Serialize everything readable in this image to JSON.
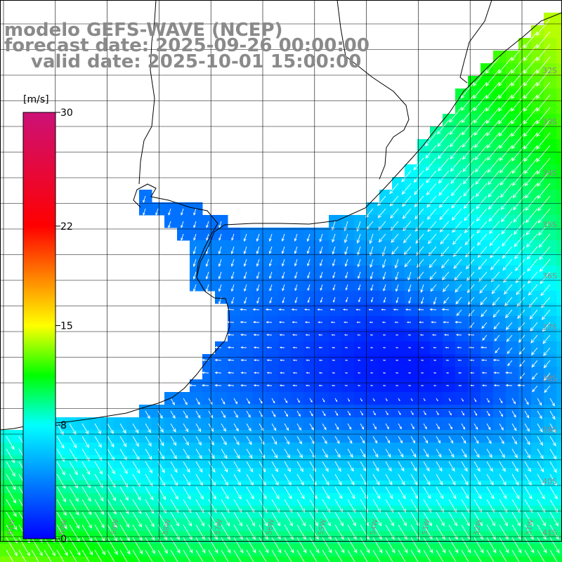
{
  "title": {
    "line1": "modelo GEFS-WAVE (NCEP)",
    "line2": "forecast date: 2025-09-26 00:00:00",
    "line3": "valid date: 2025-10-01 15:00:00"
  },
  "colorbar": {
    "unit": "[m/s]",
    "ticks": [
      {
        "label": "30",
        "value": 30
      },
      {
        "label": "22",
        "value": 22
      },
      {
        "label": "15",
        "value": 15
      },
      {
        "label": "8",
        "value": 8
      },
      {
        "label": "0",
        "value": 0
      }
    ],
    "stops": [
      {
        "value": 0,
        "color": "#0000ff"
      },
      {
        "value": 8,
        "color": "#00ffff"
      },
      {
        "value": 11.5,
        "color": "#00ff00"
      },
      {
        "value": 15,
        "color": "#ffff00"
      },
      {
        "value": 22,
        "color": "#ff0000"
      },
      {
        "value": 30,
        "color": "#cc1177"
      }
    ]
  },
  "latitude_labels": [
    "32S",
    "33S",
    "34S",
    "35S",
    "36S",
    "37S",
    "38S",
    "39S",
    "40S",
    "41S"
  ],
  "longitude_labels": [
    "61W",
    "60W",
    "59W",
    "58W",
    "57W",
    "56W",
    "55W",
    "54W",
    "53W",
    "52W",
    "51W"
  ],
  "colors": {
    "grid": "#000000",
    "coast": "#000000",
    "label": "#8a8a8a",
    "arrow": "#ffffff"
  }
}
